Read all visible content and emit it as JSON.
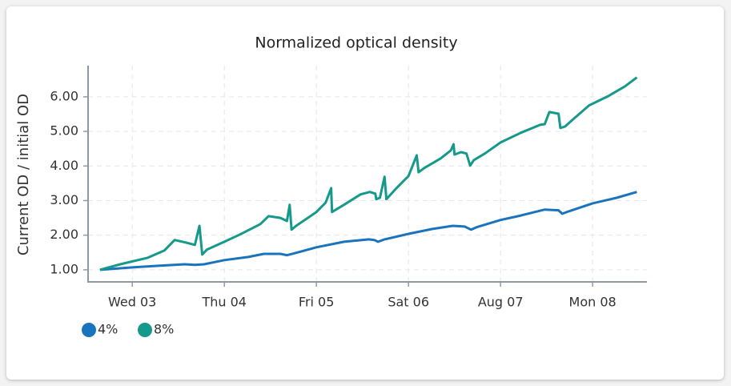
{
  "chart_data": {
    "type": "line",
    "title": "Normalized optical density",
    "y_label": "Current OD / initial OD",
    "xlim": [
      2.52,
      8.59
    ],
    "xticks": [
      {
        "value": 3,
        "label": "Wed 03"
      },
      {
        "value": 4,
        "label": "Thu 04"
      },
      {
        "value": 5,
        "label": "Fri 05"
      },
      {
        "value": 6,
        "label": "Sat 06"
      },
      {
        "value": 7,
        "label": "Aug 07"
      },
      {
        "value": 8,
        "label": "Mon 08"
      }
    ],
    "ylim": [
      0.65,
      6.9
    ],
    "yticks": [
      {
        "value": 1,
        "label": "1.00"
      },
      {
        "value": 2,
        "label": "2.00"
      },
      {
        "value": 3,
        "label": "3.00"
      },
      {
        "value": 4,
        "label": "4.00"
      },
      {
        "value": 5,
        "label": "5.00"
      },
      {
        "value": 6,
        "label": "6.00"
      }
    ],
    "grid": true,
    "legend": "bottom-left",
    "series": [
      {
        "name": "4%",
        "color": "#1a73bd",
        "x": [
          2.65,
          3.0,
          3.3,
          3.57,
          3.68,
          3.78,
          4.0,
          4.26,
          4.43,
          4.61,
          4.68,
          4.78,
          5.0,
          5.3,
          5.57,
          5.63,
          5.67,
          5.74,
          6.0,
          6.26,
          6.48,
          6.61,
          6.68,
          6.74,
          7.0,
          7.22,
          7.48,
          7.63,
          7.67,
          7.74,
          8.0,
          8.26,
          8.48
        ],
        "values": [
          1.0,
          1.07,
          1.12,
          1.16,
          1.14,
          1.16,
          1.28,
          1.37,
          1.46,
          1.46,
          1.42,
          1.49,
          1.65,
          1.81,
          1.88,
          1.86,
          1.81,
          1.88,
          2.04,
          2.18,
          2.27,
          2.25,
          2.16,
          2.23,
          2.44,
          2.57,
          2.74,
          2.72,
          2.62,
          2.69,
          2.92,
          3.08,
          3.25
        ]
      },
      {
        "name": "8%",
        "color": "#14998a",
        "x": [
          2.65,
          2.87,
          3.17,
          3.35,
          3.46,
          3.58,
          3.68,
          3.73,
          3.76,
          3.81,
          4.0,
          4.17,
          4.39,
          4.48,
          4.61,
          4.68,
          4.71,
          4.73,
          4.78,
          5.0,
          5.1,
          5.16,
          5.17,
          5.3,
          5.48,
          5.58,
          5.64,
          5.65,
          5.69,
          5.74,
          5.76,
          5.87,
          6.0,
          6.09,
          6.11,
          6.17,
          6.35,
          6.46,
          6.49,
          6.5,
          6.57,
          6.63,
          6.67,
          6.71,
          6.83,
          7.0,
          7.22,
          7.43,
          7.48,
          7.53,
          7.63,
          7.65,
          7.7,
          7.78,
          7.96,
          8.17,
          8.35,
          8.48
        ],
        "values": [
          1.0,
          1.16,
          1.35,
          1.56,
          1.86,
          1.79,
          1.72,
          2.27,
          1.44,
          1.58,
          1.81,
          2.02,
          2.32,
          2.55,
          2.5,
          2.41,
          2.88,
          2.16,
          2.27,
          2.67,
          2.94,
          3.36,
          2.67,
          2.88,
          3.18,
          3.25,
          3.2,
          3.04,
          3.08,
          3.69,
          3.04,
          3.36,
          3.71,
          4.31,
          3.82,
          3.94,
          4.22,
          4.45,
          4.63,
          4.33,
          4.4,
          4.36,
          4.01,
          4.17,
          4.36,
          4.68,
          4.96,
          5.19,
          5.21,
          5.56,
          5.51,
          5.1,
          5.14,
          5.33,
          5.75,
          6.02,
          6.3,
          6.56
        ]
      }
    ]
  }
}
